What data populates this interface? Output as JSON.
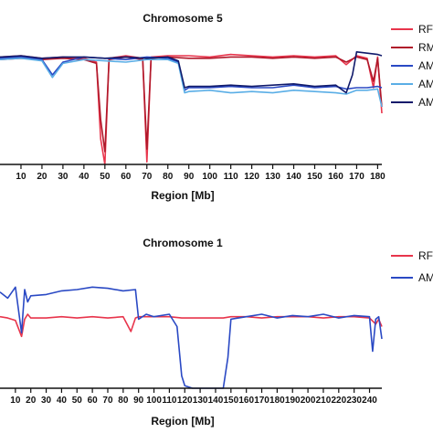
{
  "chart_data": [
    {
      "type": "line",
      "title": "Chromosome 5",
      "xlabel": "Region [Mb]",
      "ylabel": "",
      "xlim": [
        0,
        182
      ],
      "ylim": [
        0,
        1
      ],
      "x_ticks": [
        "10",
        "20",
        "30",
        "40",
        "50",
        "60",
        "70",
        "80",
        "90",
        "100",
        "110",
        "120",
        "130",
        "140",
        "150",
        "160",
        "170",
        "180"
      ],
      "legend_position": "right",
      "legend": [
        {
          "label": "RF",
          "color": "#e8354c"
        },
        {
          "label": "RM",
          "color": "#b0182a"
        },
        {
          "label": "AM",
          "color": "#2a49c4"
        },
        {
          "label": "AM",
          "color": "#5aaee6"
        },
        {
          "label": "AM",
          "color": "#101a6b"
        }
      ],
      "series": [
        {
          "color": "#e8354c",
          "x": [
            0,
            10,
            20,
            30,
            40,
            46,
            48,
            50,
            52,
            60,
            68,
            70,
            72,
            80,
            90,
            100,
            110,
            120,
            130,
            140,
            150,
            160,
            165,
            170,
            175,
            178,
            180,
            182
          ],
          "y": [
            0.84,
            0.85,
            0.83,
            0.84,
            0.83,
            0.8,
            0.2,
            0.0,
            0.83,
            0.85,
            0.83,
            0.02,
            0.84,
            0.85,
            0.85,
            0.84,
            0.86,
            0.85,
            0.84,
            0.85,
            0.84,
            0.85,
            0.78,
            0.85,
            0.83,
            0.6,
            0.84,
            0.4
          ]
        },
        {
          "color": "#b0182a",
          "x": [
            0,
            10,
            20,
            30,
            40,
            46,
            48,
            50,
            52,
            60,
            68,
            70,
            72,
            80,
            90,
            100,
            110,
            120,
            130,
            140,
            150,
            160,
            165,
            170,
            175,
            178,
            180,
            182
          ],
          "y": [
            0.82,
            0.83,
            0.82,
            0.83,
            0.82,
            0.79,
            0.35,
            0.1,
            0.82,
            0.84,
            0.82,
            0.12,
            0.83,
            0.84,
            0.83,
            0.83,
            0.84,
            0.84,
            0.83,
            0.84,
            0.83,
            0.84,
            0.8,
            0.84,
            0.82,
            0.65,
            0.83,
            0.45
          ]
        },
        {
          "color": "#2a49c4",
          "x": [
            0,
            10,
            20,
            25,
            30,
            40,
            50,
            60,
            70,
            80,
            85,
            88,
            90,
            100,
            110,
            120,
            130,
            140,
            150,
            160,
            165,
            170,
            175,
            180,
            182
          ],
          "y": [
            0.83,
            0.84,
            0.82,
            0.7,
            0.8,
            0.84,
            0.83,
            0.82,
            0.84,
            0.83,
            0.8,
            0.58,
            0.6,
            0.6,
            0.61,
            0.6,
            0.6,
            0.62,
            0.6,
            0.61,
            0.59,
            0.6,
            0.6,
            0.61,
            0.6
          ]
        },
        {
          "color": "#5aaee6",
          "x": [
            0,
            10,
            20,
            25,
            30,
            40,
            50,
            60,
            70,
            80,
            85,
            88,
            90,
            100,
            110,
            120,
            130,
            140,
            150,
            160,
            165,
            170,
            175,
            180,
            182
          ],
          "y": [
            0.82,
            0.83,
            0.81,
            0.68,
            0.79,
            0.82,
            0.81,
            0.8,
            0.82,
            0.82,
            0.79,
            0.56,
            0.57,
            0.58,
            0.56,
            0.57,
            0.56,
            0.58,
            0.57,
            0.56,
            0.55,
            0.58,
            0.58,
            0.59,
            0.45
          ]
        },
        {
          "color": "#101a6b",
          "x": [
            0,
            10,
            20,
            30,
            40,
            50,
            60,
            70,
            80,
            85,
            88,
            90,
            100,
            110,
            120,
            130,
            140,
            150,
            160,
            165,
            168,
            170,
            175,
            180,
            182
          ],
          "y": [
            0.84,
            0.85,
            0.83,
            0.84,
            0.84,
            0.83,
            0.84,
            0.83,
            0.84,
            0.81,
            0.6,
            0.61,
            0.61,
            0.62,
            0.61,
            0.62,
            0.63,
            0.61,
            0.62,
            0.56,
            0.7,
            0.88,
            0.87,
            0.86,
            0.85
          ]
        }
      ]
    },
    {
      "type": "line",
      "title": "Chromosome 1",
      "xlabel": "Region [Mb]",
      "ylabel": "",
      "xlim": [
        0,
        248
      ],
      "ylim": [
        0,
        1
      ],
      "x_ticks": [
        "10",
        "20",
        "30",
        "40",
        "50",
        "60",
        "70",
        "80",
        "90",
        "100",
        "110",
        "120",
        "130",
        "140",
        "150",
        "160",
        "170",
        "180",
        "190",
        "200",
        "210",
        "220",
        "230",
        "240"
      ],
      "legend_position": "right",
      "legend": [
        {
          "label": "RF",
          "color": "#e8354c"
        },
        {
          "label": "AM",
          "color": "#2a49c4"
        }
      ],
      "series": [
        {
          "color": "#e8354c",
          "x": [
            0,
            5,
            10,
            14,
            16,
            18,
            20,
            30,
            40,
            50,
            60,
            70,
            80,
            85,
            88,
            90,
            100,
            110,
            118,
            145,
            150,
            160,
            170,
            180,
            190,
            200,
            210,
            220,
            230,
            240,
            244,
            246,
            248
          ],
          "y": [
            0.58,
            0.57,
            0.55,
            0.42,
            0.56,
            0.6,
            0.57,
            0.57,
            0.58,
            0.57,
            0.58,
            0.57,
            0.58,
            0.46,
            0.57,
            0.58,
            0.58,
            0.58,
            0.57,
            0.57,
            0.58,
            0.58,
            0.57,
            0.58,
            0.58,
            0.58,
            0.57,
            0.58,
            0.58,
            0.57,
            0.52,
            0.56,
            0.5
          ]
        },
        {
          "color": "#2a49c4",
          "x": [
            0,
            5,
            10,
            14,
            16,
            18,
            20,
            30,
            40,
            50,
            60,
            70,
            80,
            88,
            90,
            95,
            100,
            110,
            115,
            118,
            120,
            125,
            130,
            140,
            145,
            148,
            150,
            160,
            170,
            180,
            190,
            200,
            210,
            220,
            230,
            240,
            242,
            244,
            246,
            248
          ],
          "y": [
            0.78,
            0.73,
            0.82,
            0.45,
            0.8,
            0.7,
            0.75,
            0.76,
            0.79,
            0.8,
            0.82,
            0.81,
            0.79,
            0.8,
            0.56,
            0.6,
            0.58,
            0.6,
            0.5,
            0.1,
            0.02,
            0.0,
            0.0,
            0.0,
            0.0,
            0.25,
            0.56,
            0.58,
            0.6,
            0.57,
            0.59,
            0.58,
            0.6,
            0.57,
            0.59,
            0.58,
            0.3,
            0.56,
            0.58,
            0.4
          ]
        }
      ]
    }
  ]
}
